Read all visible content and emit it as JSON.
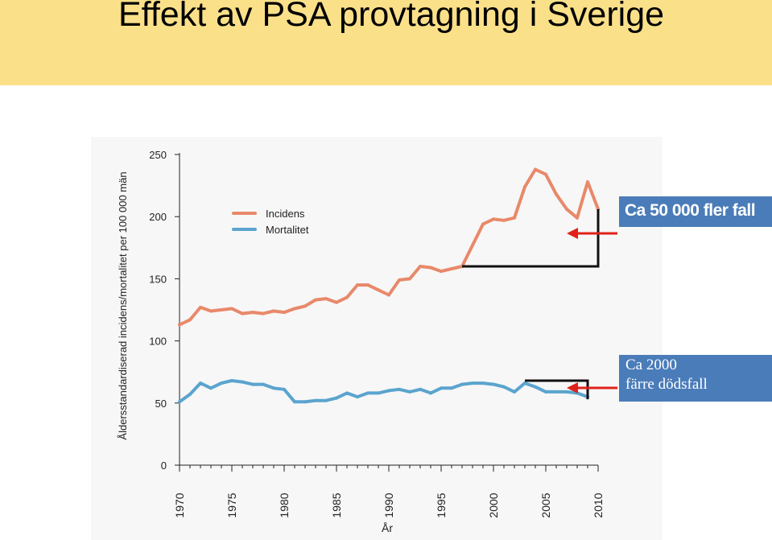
{
  "page": {
    "title": "Effekt av PSA provtagning i Sverige"
  },
  "chart_data": {
    "type": "line",
    "title": "",
    "xlabel": "År",
    "ylabel": "Åldersstandardiserad incidens/mortalitet per 100 000 män",
    "xlim": [
      1970,
      2010
    ],
    "ylim": [
      0,
      250
    ],
    "yticks": [
      0,
      50,
      100,
      150,
      200,
      250
    ],
    "xticks": [
      1970,
      1975,
      1980,
      1985,
      1990,
      1995,
      2000,
      2005,
      2010
    ],
    "legend_position": "top-left",
    "x": [
      1970,
      1971,
      1972,
      1973,
      1974,
      1975,
      1976,
      1977,
      1978,
      1979,
      1980,
      1981,
      1982,
      1983,
      1984,
      1985,
      1986,
      1987,
      1988,
      1989,
      1990,
      1991,
      1992,
      1993,
      1994,
      1995,
      1996,
      1997,
      1998,
      1999,
      2000,
      2001,
      2002,
      2003,
      2004,
      2005,
      2006,
      2007,
      2008,
      2009,
      2010
    ],
    "series": [
      {
        "name": "Incidens",
        "color": "#e8896a",
        "values": [
          113,
          117,
          127,
          124,
          125,
          126,
          122,
          123,
          122,
          124,
          123,
          126,
          128,
          133,
          134,
          131,
          135,
          145,
          145,
          141,
          137,
          149,
          150,
          160,
          159,
          156,
          158,
          160,
          177,
          194,
          198,
          197,
          199,
          224,
          238,
          234,
          218,
          206,
          199,
          228,
          206
        ]
      },
      {
        "name": "Mortalitet",
        "color": "#5ba4cf",
        "values": [
          51,
          57,
          66,
          62,
          66,
          68,
          67,
          65,
          65,
          62,
          61,
          51,
          51,
          52,
          52,
          54,
          58,
          55,
          58,
          58,
          60,
          61,
          59,
          61,
          58,
          62,
          62,
          65,
          66,
          66,
          65,
          63,
          59,
          66,
          63,
          59,
          59,
          59,
          58,
          55,
          null
        ]
      }
    ],
    "annotations": [
      {
        "text": "Ca 50 000 fler fall",
        "color": "#4a7cb9"
      },
      {
        "text_lines": [
          "Ca 2000",
          "färre dödsfall"
        ],
        "color": "#4a7cb9"
      }
    ]
  }
}
